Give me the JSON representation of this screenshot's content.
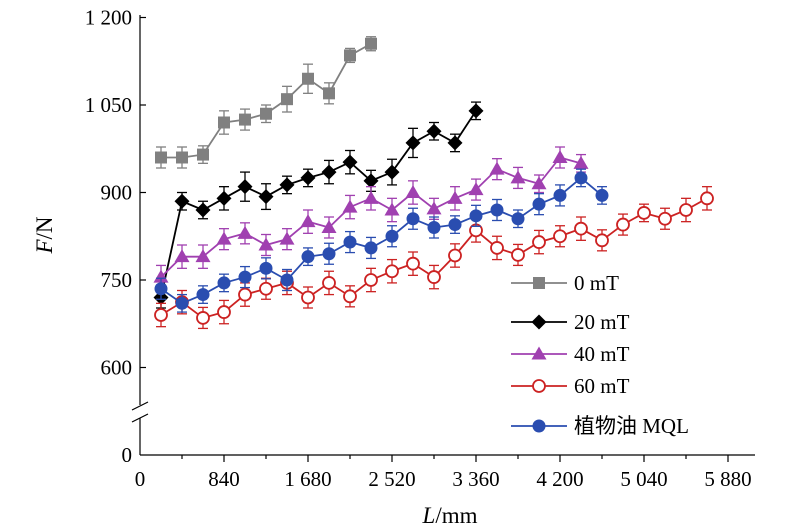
{
  "chart_data": {
    "type": "line",
    "xlabel": {
      "italic": "L",
      "unit": "/mm"
    },
    "ylabel": {
      "italic": "F",
      "unit": "/N"
    },
    "x_ticks": [
      0,
      840,
      1680,
      2520,
      3360,
      4200,
      5040,
      5880
    ],
    "x_tick_labels": [
      "0",
      "840",
      "1 680",
      "2 520",
      "3 360",
      "4 200",
      "5 040",
      "5 880"
    ],
    "y_ticks": [
      0,
      600,
      750,
      900,
      1050,
      1200
    ],
    "y_tick_labels": [
      "0",
      "600",
      "750",
      "900",
      "1 050",
      "1 200"
    ],
    "xlim": [
      0,
      5880
    ],
    "ylim": [
      0,
      1200
    ],
    "y_axis_break": "between 0 and 600",
    "error_bars": true,
    "legend_position": "bottom-right",
    "series": [
      {
        "name": "0 mT",
        "color": "#808080",
        "marker": "square-filled",
        "x": [
          210,
          420,
          630,
          840,
          1050,
          1260,
          1470,
          1680,
          1890,
          2100,
          2310
        ],
        "y": [
          960,
          960,
          965,
          1020,
          1025,
          1035,
          1060,
          1095,
          1070,
          1135,
          1155
        ],
        "err": [
          18,
          18,
          15,
          20,
          18,
          15,
          22,
          25,
          18,
          12,
          12
        ]
      },
      {
        "name": "20 mT",
        "color": "#000000",
        "marker": "diamond-filled",
        "x": [
          210,
          420,
          630,
          840,
          1050,
          1260,
          1470,
          1680,
          1890,
          2100,
          2310,
          2520,
          2730,
          2940,
          3150,
          3360
        ],
        "y": [
          720,
          885,
          870,
          890,
          910,
          893,
          913,
          925,
          935,
          952,
          920,
          935,
          985,
          1005,
          985,
          1040
        ],
        "err": [
          18,
          15,
          15,
          20,
          25,
          22,
          15,
          15,
          20,
          20,
          18,
          22,
          25,
          15,
          15,
          15
        ]
      },
      {
        "name": "40 mT",
        "color": "#a040b0",
        "marker": "triangle-filled",
        "x": [
          210,
          420,
          630,
          840,
          1050,
          1260,
          1470,
          1680,
          1890,
          2100,
          2310,
          2520,
          2730,
          2940,
          3150,
          3360,
          3570,
          3780,
          3990,
          4200,
          4410
        ],
        "y": [
          755,
          790,
          790,
          820,
          830,
          810,
          820,
          850,
          840,
          875,
          890,
          870,
          900,
          872,
          890,
          905,
          940,
          925,
          915,
          960,
          950
        ],
        "err": [
          20,
          20,
          20,
          18,
          18,
          18,
          18,
          20,
          18,
          20,
          20,
          20,
          20,
          18,
          20,
          18,
          18,
          18,
          15,
          18,
          15
        ]
      },
      {
        "name": "60 mT",
        "color": "#cc2222",
        "marker": "circle-open",
        "x": [
          210,
          420,
          630,
          840,
          1050,
          1260,
          1470,
          1680,
          1890,
          2100,
          2310,
          2520,
          2730,
          2940,
          3150,
          3360,
          3570,
          3780,
          3990,
          4200,
          4410,
          4620,
          4830,
          5040,
          5250,
          5460,
          5670
        ],
        "y": [
          690,
          712,
          685,
          695,
          725,
          735,
          745,
          720,
          745,
          722,
          750,
          765,
          778,
          755,
          792,
          835,
          805,
          793,
          815,
          825,
          838,
          818,
          845,
          865,
          855,
          870,
          890
        ],
        "err": [
          20,
          20,
          18,
          20,
          20,
          18,
          20,
          18,
          20,
          18,
          20,
          20,
          20,
          20,
          20,
          20,
          20,
          18,
          20,
          18,
          20,
          18,
          18,
          15,
          18,
          20,
          20
        ]
      },
      {
        "name": "植物油 MQL",
        "color": "#2a4db0",
        "marker": "circle-filled",
        "x": [
          210,
          420,
          630,
          840,
          1050,
          1260,
          1470,
          1680,
          1890,
          2100,
          2310,
          2520,
          2730,
          2940,
          3150,
          3360,
          3570,
          3780,
          3990,
          4200,
          4410,
          4620
        ],
        "y": [
          735,
          710,
          725,
          745,
          755,
          770,
          750,
          790,
          795,
          815,
          805,
          825,
          855,
          840,
          845,
          860,
          870,
          855,
          880,
          895,
          925,
          895
        ],
        "err": [
          18,
          15,
          15,
          15,
          18,
          18,
          18,
          15,
          18,
          18,
          18,
          18,
          18,
          18,
          15,
          18,
          18,
          15,
          18,
          18,
          15,
          15
        ]
      }
    ]
  }
}
